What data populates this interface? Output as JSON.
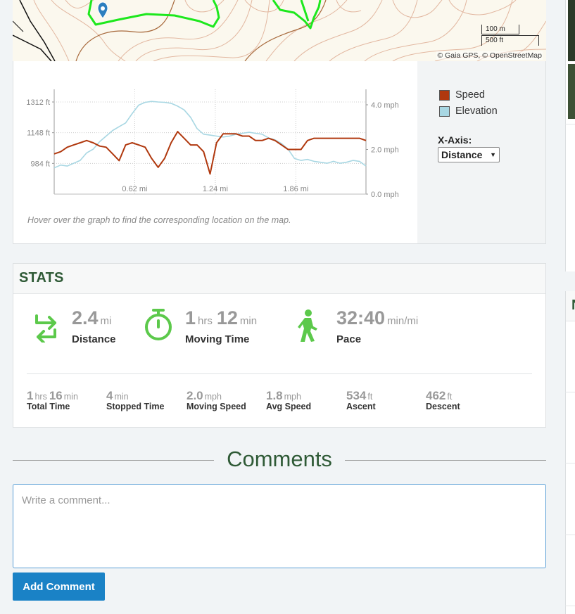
{
  "map": {
    "scale_top": "100 m",
    "scale_bottom": "500 ft",
    "attribution": "© Gaia GPS, © OpenStreetMap"
  },
  "chart": {
    "legend": [
      {
        "label": "Speed",
        "color": "#b0380e"
      },
      {
        "label": "Elevation",
        "color": "#a8d7e3"
      }
    ],
    "xaxis_label": "X-Axis:",
    "xaxis_selected": "Distance",
    "hover_hint": "Hover over the graph to find the corresponding location on the map."
  },
  "chart_data": {
    "type": "line",
    "xlabel": "",
    "xlim": [
      0,
      2.4
    ],
    "x_ticks": [
      "0.62 mi",
      "1.24 mi",
      "1.86 mi"
    ],
    "y_left_ticks": [
      "1312 ft",
      "1148 ft",
      "984 ft"
    ],
    "y_right_ticks": [
      "4.0 mph",
      "2.0 mph",
      "0.0 mph"
    ],
    "y_left_range_ft": [
      820,
      1312
    ],
    "y_right_range_mph": [
      0,
      4.0
    ],
    "series": [
      {
        "name": "Elevation",
        "axis": "left",
        "unit": "ft",
        "x": [
          0,
          0.05,
          0.1,
          0.15,
          0.2,
          0.25,
          0.3,
          0.35,
          0.4,
          0.45,
          0.5,
          0.55,
          0.6,
          0.65,
          0.7,
          0.75,
          0.8,
          0.85,
          0.9,
          0.95,
          1.0,
          1.05,
          1.1,
          1.15,
          1.2,
          1.25,
          1.3,
          1.35,
          1.4,
          1.45,
          1.5,
          1.55,
          1.6,
          1.65,
          1.7,
          1.75,
          1.8,
          1.85,
          1.9,
          1.95,
          2.0,
          2.05,
          2.1,
          2.15,
          2.2,
          2.25,
          2.3,
          2.35,
          2.4
        ],
        "values": [
          960,
          975,
          970,
          985,
          1000,
          1040,
          1060,
          1100,
          1130,
          1160,
          1180,
          1200,
          1250,
          1295,
          1310,
          1315,
          1312,
          1310,
          1305,
          1290,
          1270,
          1230,
          1170,
          1140,
          1135,
          1130,
          1125,
          1130,
          1140,
          1145,
          1150,
          1145,
          1140,
          1120,
          1110,
          1090,
          1060,
          1010,
          1000,
          1005,
          995,
          990,
          985,
          995,
          985,
          990,
          1000,
          995,
          970
        ]
      },
      {
        "name": "Speed",
        "axis": "right",
        "unit": "mph",
        "x": [
          0,
          0.05,
          0.1,
          0.15,
          0.2,
          0.25,
          0.3,
          0.35,
          0.4,
          0.45,
          0.5,
          0.55,
          0.6,
          0.65,
          0.7,
          0.75,
          0.8,
          0.85,
          0.9,
          0.95,
          1.0,
          1.05,
          1.1,
          1.15,
          1.2,
          1.25,
          1.3,
          1.35,
          1.4,
          1.45,
          1.5,
          1.55,
          1.6,
          1.65,
          1.7,
          1.75,
          1.8,
          1.85,
          1.9,
          1.95,
          2.0,
          2.05,
          2.1,
          2.15,
          2.2,
          2.25,
          2.3,
          2.35,
          2.4
        ],
        "values": [
          1.8,
          1.9,
          2.1,
          2.2,
          2.3,
          2.4,
          2.3,
          2.15,
          2.1,
          1.8,
          1.5,
          2.2,
          2.3,
          2.2,
          2.1,
          1.6,
          1.2,
          1.6,
          2.3,
          2.8,
          2.5,
          2.2,
          2.2,
          1.9,
          0.9,
          2.3,
          2.7,
          2.7,
          2.7,
          2.6,
          2.6,
          2.4,
          2.4,
          2.5,
          2.4,
          2.2,
          2.0,
          2.0,
          2.0,
          2.4,
          2.5,
          2.5,
          2.5,
          2.5,
          2.5,
          2.5,
          2.5,
          2.5,
          2.4
        ]
      }
    ]
  },
  "stats": {
    "title": "STATS",
    "big": [
      {
        "value": "2.4",
        "unit": "mi",
        "label": "Distance",
        "icon": "arrows-loop-icon"
      },
      {
        "value1": "1",
        "unit1": "hrs",
        "value2": "12",
        "unit2": "min",
        "label": "Moving Time",
        "icon": "stopwatch-icon"
      },
      {
        "value": "32:40",
        "unit": "min/mi",
        "label": "Pace",
        "icon": "walking-person-icon"
      }
    ],
    "small": [
      {
        "value1": "1",
        "unit1": "hrs",
        "value2": "16",
        "unit2": "min",
        "label": "Total Time"
      },
      {
        "value": "4",
        "unit": "min",
        "label": "Stopped Time"
      },
      {
        "value": "2.0",
        "unit": "mph",
        "label": "Moving Speed"
      },
      {
        "value": "1.8",
        "unit": "mph",
        "label": "Avg Speed"
      },
      {
        "value": "534",
        "unit": "ft",
        "label": "Ascent"
      },
      {
        "value": "462",
        "unit": "ft",
        "label": "Descent"
      }
    ],
    "accent_color": "#5cc94b"
  },
  "comments": {
    "title": "Comments",
    "placeholder": "Write a comment...",
    "button": "Add Comment"
  },
  "sidebar": {
    "heading_fragment": "N"
  }
}
